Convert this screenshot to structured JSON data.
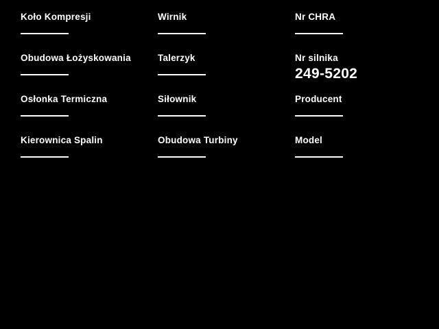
{
  "app": {
    "background_color": "#000000",
    "text_color": "#ffffff"
  },
  "form": {
    "fields": [
      {
        "label": "Koło Kompresji",
        "value": ""
      },
      {
        "label": "Wirnik",
        "value": ""
      },
      {
        "label": "Nr CHRA",
        "value": ""
      },
      {
        "label": "Obudowa Łożyskowania",
        "value": ""
      },
      {
        "label": "Talerzyk",
        "value": ""
      },
      {
        "label": "Nr silnika",
        "value": "249-5202"
      },
      {
        "label": "Osłonka Termiczna",
        "value": ""
      },
      {
        "label": "Siłownik",
        "value": ""
      },
      {
        "label": "Producent",
        "value": ""
      },
      {
        "label": "Kierownica Spalin",
        "value": ""
      },
      {
        "label": "Obudowa Turbiny",
        "value": ""
      },
      {
        "label": "Model",
        "value": ""
      }
    ]
  }
}
